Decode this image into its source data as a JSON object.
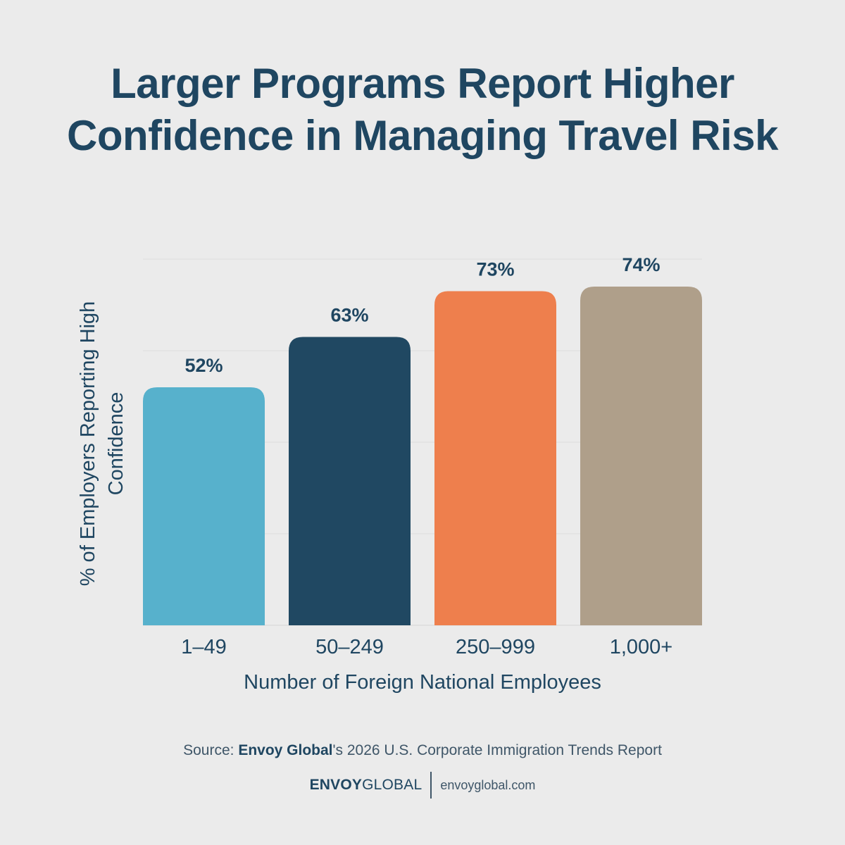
{
  "title_line1": "Larger Programs Report Higher",
  "title_line2": "Confidence in Managing Travel Risk",
  "chart_data": {
    "type": "bar",
    "categories": [
      "1–49",
      "50–249",
      "250–999",
      "1,000+"
    ],
    "values": [
      52,
      63,
      73,
      74
    ],
    "value_labels": [
      "52%",
      "63%",
      "73%",
      "74%"
    ],
    "colors": [
      "#57b1cc",
      "#204862",
      "#ee7f4d",
      "#af9f8a"
    ],
    "xlabel": "Number of Foreign National Employees",
    "ylabel_line1": "% of Employers Reporting High",
    "ylabel_line2": "Confidence",
    "ylim": [
      0,
      80
    ],
    "grid": true,
    "y_axis_ticks_shown": false
  },
  "source": {
    "prefix": "Source: ",
    "brand": "Envoy Global",
    "suffix": "'s 2026 U.S. Corporate Immigration Trends Report"
  },
  "footer": {
    "logo_bold": "ENVOY",
    "logo_light": "GLOBAL",
    "url": "envoyglobal.com"
  }
}
